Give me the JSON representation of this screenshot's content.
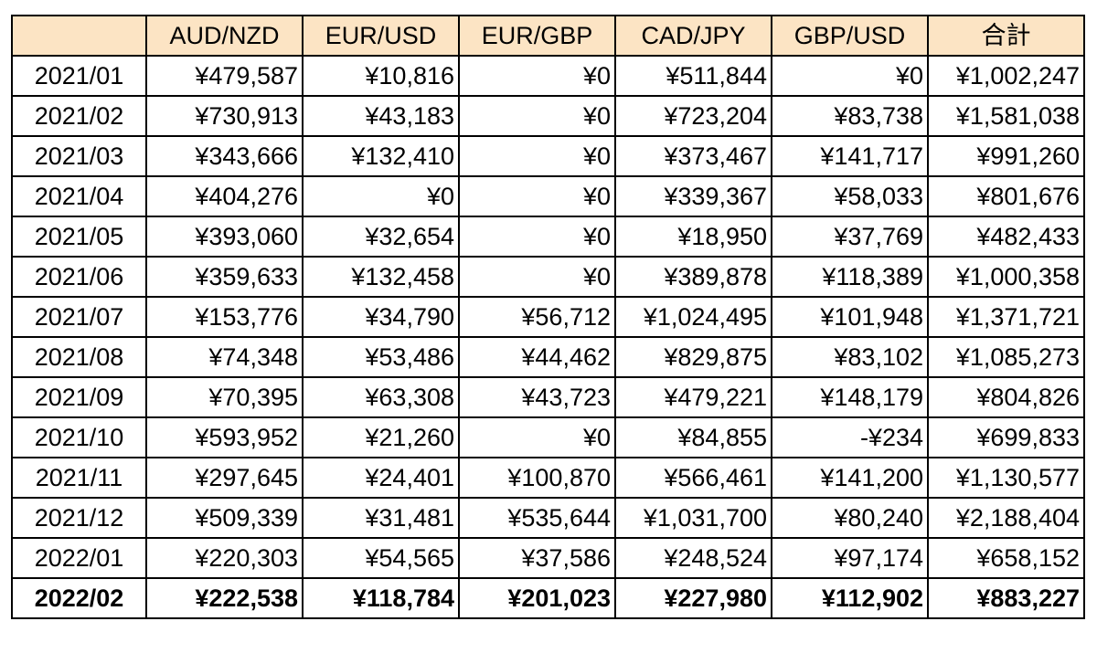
{
  "table": {
    "header_bg": "#fce4c4",
    "columns": [
      "",
      "AUD/NZD",
      "EUR/USD",
      "EUR/GBP",
      "CAD/JPY",
      "GBP/USD",
      "合計"
    ],
    "rows": [
      {
        "month": "2021/01",
        "cells": [
          "¥479,587",
          "¥10,816",
          "¥0",
          "¥511,844",
          "¥0",
          "¥1,002,247"
        ]
      },
      {
        "month": "2021/02",
        "cells": [
          "¥730,913",
          "¥43,183",
          "¥0",
          "¥723,204",
          "¥83,738",
          "¥1,581,038"
        ]
      },
      {
        "month": "2021/03",
        "cells": [
          "¥343,666",
          "¥132,410",
          "¥0",
          "¥373,467",
          "¥141,717",
          "¥991,260"
        ]
      },
      {
        "month": "2021/04",
        "cells": [
          "¥404,276",
          "¥0",
          "¥0",
          "¥339,367",
          "¥58,033",
          "¥801,676"
        ]
      },
      {
        "month": "2021/05",
        "cells": [
          "¥393,060",
          "¥32,654",
          "¥0",
          "¥18,950",
          "¥37,769",
          "¥482,433"
        ]
      },
      {
        "month": "2021/06",
        "cells": [
          "¥359,633",
          "¥132,458",
          "¥0",
          "¥389,878",
          "¥118,389",
          "¥1,000,358"
        ]
      },
      {
        "month": "2021/07",
        "cells": [
          "¥153,776",
          "¥34,790",
          "¥56,712",
          "¥1,024,495",
          "¥101,948",
          "¥1,371,721"
        ]
      },
      {
        "month": "2021/08",
        "cells": [
          "¥74,348",
          "¥53,486",
          "¥44,462",
          "¥829,875",
          "¥83,102",
          "¥1,085,273"
        ]
      },
      {
        "month": "2021/09",
        "cells": [
          "¥70,395",
          "¥63,308",
          "¥43,723",
          "¥479,221",
          "¥148,179",
          "¥804,826"
        ]
      },
      {
        "month": "2021/10",
        "cells": [
          "¥593,952",
          "¥21,260",
          "¥0",
          "¥84,855",
          "-¥234",
          "¥699,833"
        ]
      },
      {
        "month": "2021/11",
        "cells": [
          "¥297,645",
          "¥24,401",
          "¥100,870",
          "¥566,461",
          "¥141,200",
          "¥1,130,577"
        ]
      },
      {
        "month": "2021/12",
        "cells": [
          "¥509,339",
          "¥31,481",
          "¥535,644",
          "¥1,031,700",
          "¥80,240",
          "¥2,188,404"
        ]
      },
      {
        "month": "2022/01",
        "cells": [
          "¥220,303",
          "¥54,565",
          "¥37,586",
          "¥248,524",
          "¥97,174",
          "¥658,152"
        ]
      },
      {
        "month": "2022/02",
        "cells": [
          "¥222,538",
          "¥118,784",
          "¥201,023",
          "¥227,980",
          "¥112,902",
          "¥883,227"
        ],
        "bold": true
      }
    ]
  }
}
